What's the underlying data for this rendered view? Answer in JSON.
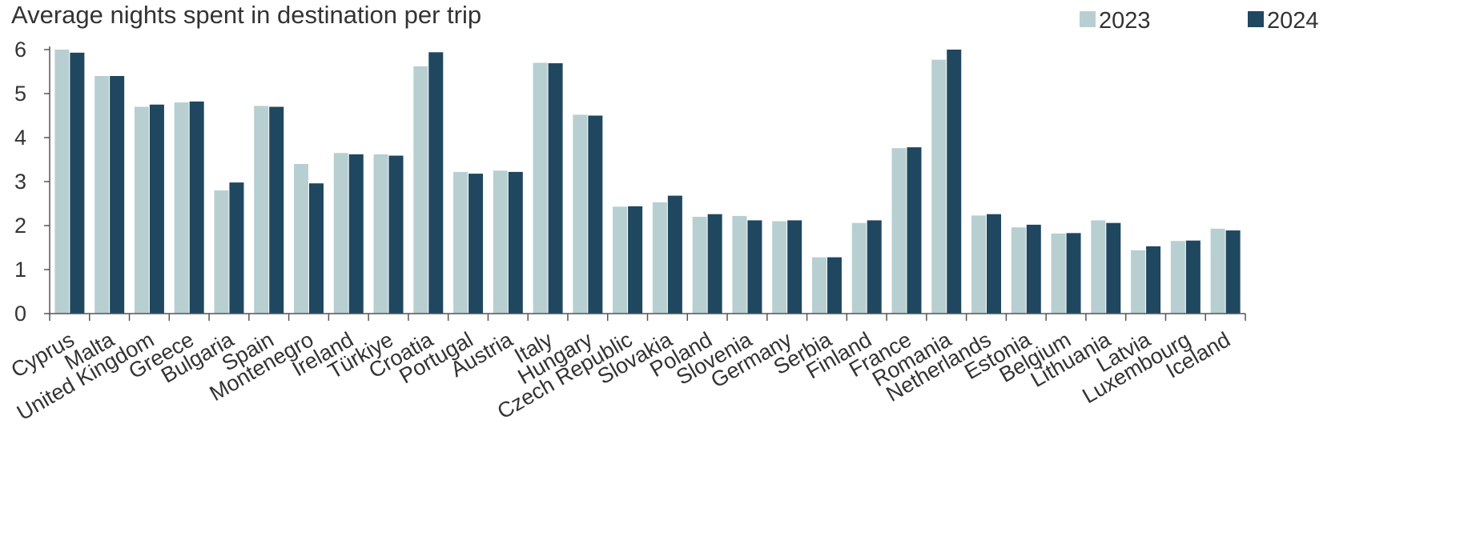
{
  "chart_data": {
    "type": "bar",
    "title": "Average nights spent in destination per trip",
    "xlabel": "",
    "ylabel": "",
    "ylim": [
      0,
      6
    ],
    "yticks": [
      0,
      1,
      2,
      3,
      4,
      5,
      6
    ],
    "grid": false,
    "legend_position": "top-right",
    "categories": [
      "Cyprus",
      "Malta",
      "United Kingdom",
      "Greece",
      "Bulgaria",
      "Spain",
      "Montenegro",
      "Ireland",
      "Türkiye",
      "Croatia",
      "Portugal",
      "Austria",
      "Italy",
      "Hungary",
      "Czech Republic",
      "Slovakia",
      "Poland",
      "Slovenia",
      "Germany",
      "Serbia",
      "Finland",
      "France",
      "Romania",
      "Netherlands",
      "Estonia",
      "Belgium",
      "Lithuania",
      "Latvia",
      "Luxembourg",
      "Iceland"
    ],
    "series": [
      {
        "name": "2023",
        "color": "#b8cfd1",
        "values": [
          6.0,
          5.4,
          4.7,
          4.8,
          2.8,
          4.72,
          3.4,
          3.65,
          3.62,
          5.62,
          3.22,
          3.25,
          5.7,
          4.52,
          2.43,
          2.53,
          2.2,
          2.22,
          2.1,
          1.28,
          2.06,
          3.76,
          5.77,
          2.23,
          1.96,
          1.82,
          2.12,
          1.44,
          1.65,
          1.93
        ]
      },
      {
        "name": "2024",
        "color": "#1f4760",
        "values": [
          5.93,
          5.4,
          4.75,
          4.82,
          2.98,
          4.7,
          2.96,
          3.62,
          3.59,
          5.94,
          3.18,
          3.22,
          5.69,
          4.5,
          2.44,
          2.68,
          2.26,
          2.12,
          2.12,
          1.28,
          2.12,
          3.78,
          6.0,
          2.26,
          2.02,
          1.83,
          2.06,
          1.53,
          1.66,
          1.89
        ]
      }
    ]
  }
}
